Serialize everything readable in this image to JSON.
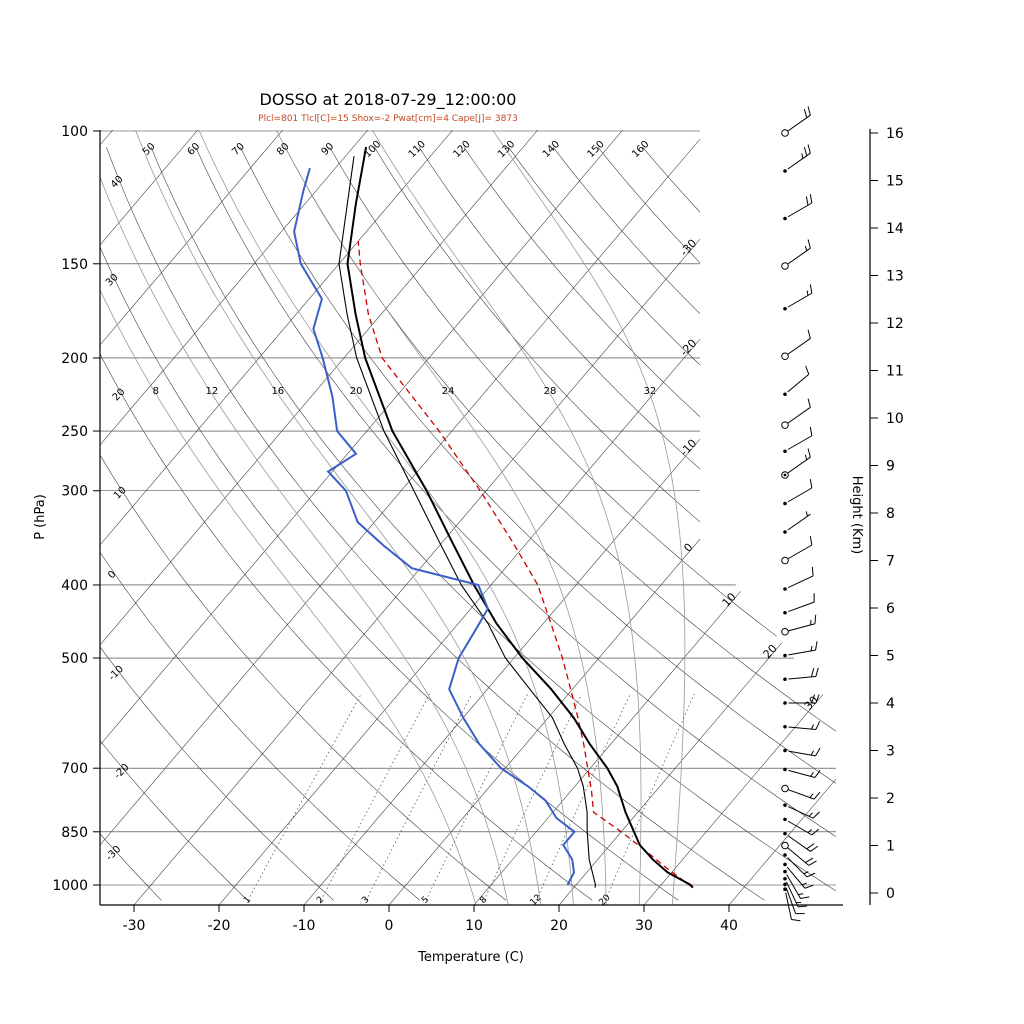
{
  "header": {
    "title": "DOSSO at 2018-07-29_12:00:00",
    "subtitle": "Plcl=801 Tlcl[C]=15 Shox=-2 Pwat[cm]=4 Cape[J]= 3873"
  },
  "chart_data": {
    "type": "skewt-logp",
    "station": "DOSSO",
    "datetime": "2018-07-29_12:00:00",
    "indices": {
      "Plcl": 801,
      "Tlcl_C": 15,
      "Shox": -2,
      "Pwat_cm": 4,
      "Cape_J": 3873
    },
    "axes": {
      "pressure": {
        "label": "P (hPa)",
        "ticks": [
          100,
          150,
          200,
          250,
          300,
          400,
          500,
          700,
          850,
          1000
        ],
        "range": [
          100,
          1050
        ]
      },
      "temperature": {
        "label": "Temperature (C)",
        "ticks": [
          -30,
          -20,
          -10,
          0,
          10,
          20,
          30,
          40
        ],
        "skewed": true
      },
      "height": {
        "label": "Height (Km)",
        "ticks": [
          0,
          1,
          2,
          3,
          4,
          5,
          6,
          7,
          8,
          9,
          10,
          11,
          12,
          13,
          14,
          15,
          16
        ]
      }
    },
    "grid": {
      "isotherms": {
        "start": -120,
        "end": 40,
        "step": 10,
        "labeled": [
          -30,
          -20,
          -10,
          0,
          10,
          20,
          30
        ]
      },
      "dry_adiabats": {
        "start": -30,
        "end": 160,
        "step": 10,
        "left_edge_labels": [
          40,
          30,
          20,
          10,
          0,
          -10,
          -20,
          -30
        ],
        "top_edge_labels": [
          50,
          60,
          70,
          80,
          90,
          100,
          110,
          120,
          130,
          140,
          150,
          160
        ]
      },
      "moist_adiabats": {
        "values": [
          8,
          12,
          16,
          20,
          24,
          28,
          32
        ],
        "label_pressure": 225
      },
      "mixing_ratio_gkg": {
        "values": [
          1,
          2,
          3,
          5,
          8,
          12,
          20
        ],
        "label_pressure": 1040,
        "top_pressure": 550
      }
    },
    "profiles": {
      "temperature": {
        "name": "temperature",
        "points": [
          [
            1008,
            34.5
          ],
          [
            1000,
            34
          ],
          [
            962,
            30
          ],
          [
            925,
            27
          ],
          [
            885,
            24
          ],
          [
            850,
            22
          ],
          [
            800,
            19
          ],
          [
            740,
            15.5
          ],
          [
            700,
            12.5
          ],
          [
            650,
            8
          ],
          [
            600,
            3.5
          ],
          [
            550,
            -2
          ],
          [
            500,
            -8.5
          ],
          [
            450,
            -15
          ],
          [
            400,
            -21.5
          ],
          [
            350,
            -28.5
          ],
          [
            300,
            -36.5
          ],
          [
            250,
            -46.5
          ],
          [
            200,
            -57
          ],
          [
            175,
            -62.5
          ],
          [
            150,
            -68.5
          ],
          [
            125,
            -73.5
          ],
          [
            105,
            -78
          ]
        ]
      },
      "dewpoint": {
        "name": "dewpoint",
        "points": [
          [
            1000,
            19.5
          ],
          [
            962,
            19
          ],
          [
            925,
            17.5
          ],
          [
            885,
            15
          ],
          [
            850,
            15
          ],
          [
            815,
            11.5
          ],
          [
            773,
            8.5
          ],
          [
            740,
            5
          ],
          [
            700,
            0
          ],
          [
            650,
            -5
          ],
          [
            600,
            -9.5
          ],
          [
            550,
            -14
          ],
          [
            500,
            -16
          ],
          [
            460,
            -16.8
          ],
          [
            430,
            -17.5
          ],
          [
            400,
            -21
          ],
          [
            380,
            -30.5
          ],
          [
            355,
            -36
          ],
          [
            330,
            -41.5
          ],
          [
            300,
            -46
          ],
          [
            283,
            -50
          ],
          [
            268,
            -48.5
          ],
          [
            250,
            -53
          ],
          [
            225,
            -57
          ],
          [
            200,
            -62
          ],
          [
            183,
            -66
          ],
          [
            167,
            -68
          ],
          [
            150,
            -74
          ],
          [
            136,
            -78
          ],
          [
            120,
            -81
          ],
          [
            112,
            -82.5
          ]
        ]
      },
      "wet_bulb": {
        "name": "wet-bulb",
        "points": [
          [
            1008,
            23
          ],
          [
            1000,
            22.8
          ],
          [
            925,
            19.5
          ],
          [
            850,
            16.5
          ],
          [
            800,
            14.5
          ],
          [
            740,
            11.5
          ],
          [
            700,
            9
          ],
          [
            650,
            5
          ],
          [
            600,
            1
          ],
          [
            550,
            -4.5
          ],
          [
            500,
            -10.5
          ],
          [
            450,
            -16
          ],
          [
            400,
            -23
          ],
          [
            350,
            -30
          ],
          [
            300,
            -38
          ],
          [
            250,
            -47.5
          ],
          [
            200,
            -58
          ],
          [
            175,
            -63.5
          ],
          [
            150,
            -69.5
          ],
          [
            125,
            -74.5
          ],
          [
            108,
            -78.5
          ]
        ]
      },
      "parcel": {
        "name": "parcel",
        "dashed": true,
        "points": [
          [
            1008,
            34.5
          ],
          [
            950,
            29.5
          ],
          [
            900,
            25.2
          ],
          [
            850,
            20.5
          ],
          [
            801,
            15.3
          ],
          [
            750,
            12.9
          ],
          [
            700,
            10.2
          ],
          [
            650,
            7.3
          ],
          [
            600,
            4
          ],
          [
            550,
            0.3
          ],
          [
            500,
            -3.8
          ],
          [
            450,
            -8.6
          ],
          [
            400,
            -14
          ],
          [
            350,
            -21.4
          ],
          [
            300,
            -30.2
          ],
          [
            250,
            -41
          ],
          [
            200,
            -55
          ],
          [
            175,
            -61
          ],
          [
            150,
            -67
          ],
          [
            140,
            -69.5
          ]
        ]
      }
    },
    "wind_barbs": [
      {
        "km": 16.0,
        "dir": 55,
        "kt": 20,
        "marker": "circle"
      },
      {
        "km": 15.2,
        "dir": 55,
        "kt": 25,
        "marker": "dot"
      },
      {
        "km": 14.2,
        "dir": 60,
        "kt": 20,
        "marker": "dot"
      },
      {
        "km": 13.2,
        "dir": 55,
        "kt": 15,
        "marker": "circle"
      },
      {
        "km": 12.3,
        "dir": 60,
        "kt": 15,
        "marker": "dot"
      },
      {
        "km": 11.3,
        "dir": 55,
        "kt": 10,
        "marker": "circle"
      },
      {
        "km": 10.5,
        "dir": 50,
        "kt": 10,
        "marker": "dot"
      },
      {
        "km": 9.85,
        "dir": 55,
        "kt": 10,
        "marker": "circle"
      },
      {
        "km": 9.3,
        "dir": 60,
        "kt": 10,
        "marker": "dot"
      },
      {
        "km": 8.8,
        "dir": 55,
        "kt": 15,
        "marker": "bullseye"
      },
      {
        "km": 8.2,
        "dir": 60,
        "kt": 10,
        "marker": "dot"
      },
      {
        "km": 7.6,
        "dir": 55,
        "kt": 5,
        "marker": "dot"
      },
      {
        "km": 7.0,
        "dir": 60,
        "kt": 10,
        "marker": "circle"
      },
      {
        "km": 6.4,
        "dir": 65,
        "kt": 10,
        "marker": "dot"
      },
      {
        "km": 5.9,
        "dir": 70,
        "kt": 10,
        "marker": "dot"
      },
      {
        "km": 5.5,
        "dir": 75,
        "kt": 15,
        "marker": "circle"
      },
      {
        "km": 5.0,
        "dir": 80,
        "kt": 15,
        "marker": "dot"
      },
      {
        "km": 4.5,
        "dir": 85,
        "kt": 20,
        "marker": "dot"
      },
      {
        "km": 4.0,
        "dir": 90,
        "kt": 20,
        "marker": "dot"
      },
      {
        "km": 3.5,
        "dir": 95,
        "kt": 15,
        "marker": "dot"
      },
      {
        "km": 3.0,
        "dir": 100,
        "kt": 15,
        "marker": "dot"
      },
      {
        "km": 2.6,
        "dir": 105,
        "kt": 15,
        "marker": "dot"
      },
      {
        "km": 2.2,
        "dir": 110,
        "kt": 15,
        "marker": "circle"
      },
      {
        "km": 1.85,
        "dir": 115,
        "kt": 15,
        "marker": "dot"
      },
      {
        "km": 1.55,
        "dir": 120,
        "kt": 15,
        "marker": "dot"
      },
      {
        "km": 1.25,
        "dir": 125,
        "kt": 20,
        "marker": "dot"
      },
      {
        "km": 1.0,
        "dir": 130,
        "kt": 20,
        "marker": "circle"
      },
      {
        "km": 0.8,
        "dir": 135,
        "kt": 15,
        "marker": "dot"
      },
      {
        "km": 0.6,
        "dir": 140,
        "kt": 15,
        "marker": "dot"
      },
      {
        "km": 0.45,
        "dir": 150,
        "kt": 15,
        "marker": "dot"
      },
      {
        "km": 0.3,
        "dir": 155,
        "kt": 15,
        "marker": "dot"
      },
      {
        "km": 0.18,
        "dir": 160,
        "kt": 10,
        "marker": "dot"
      },
      {
        "km": 0.08,
        "dir": 168,
        "kt": 10,
        "marker": "dot"
      }
    ],
    "colors": {
      "temperature": "#000000",
      "dewpoint": "#3a5fc8",
      "wet_bulb": "#000000",
      "parcel": "#cc0000",
      "indices_text": "#c34a22",
      "grid": "#333333",
      "moist_adiabat": "#999999",
      "mixing_ratio": "#555555"
    }
  }
}
